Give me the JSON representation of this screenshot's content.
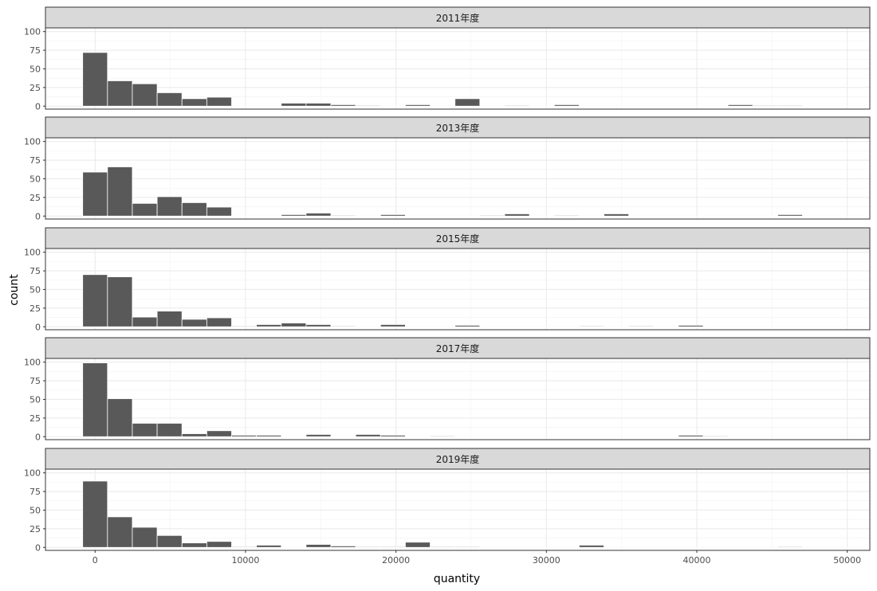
{
  "chart_data": {
    "type": "bar",
    "subtype": "faceted-histogram",
    "xlabel": "quantity",
    "ylabel": "count",
    "xlim": [
      -3300,
      51500
    ],
    "ylim": [
      -4,
      105
    ],
    "x_ticks": [
      0,
      10000,
      20000,
      30000,
      40000,
      50000
    ],
    "y_ticks": [
      0,
      25,
      50,
      75,
      100
    ],
    "bin_width": 1650,
    "bin_start": -825,
    "colors": {
      "bar_fill": "#595959",
      "bar_outline": "#ffffff",
      "strip_fill": "#d9d9d9",
      "panel_border": "#333333",
      "grid": "#ebebeb"
    },
    "panels": [
      {
        "label": "2011年度",
        "counts": [
          72,
          34,
          30,
          18,
          10,
          12,
          0,
          0,
          4,
          4,
          2,
          1,
          0,
          2,
          0,
          10,
          0,
          1,
          0,
          2,
          0,
          0,
          0,
          0,
          0,
          0,
          2,
          1,
          1,
          0,
          0,
          0
        ]
      },
      {
        "label": "2013年度",
        "counts": [
          59,
          66,
          17,
          26,
          18,
          12,
          0,
          0,
          2,
          4,
          1,
          0,
          2,
          0,
          0,
          0,
          1,
          3,
          0,
          1,
          0,
          3,
          0,
          0,
          0,
          0,
          0,
          0,
          2,
          0,
          0,
          0
        ]
      },
      {
        "label": "2015年度",
        "counts": [
          70,
          67,
          13,
          21,
          10,
          12,
          1,
          3,
          5,
          3,
          1,
          0,
          3,
          0,
          0,
          2,
          0,
          0,
          0,
          0,
          1,
          0,
          1,
          0,
          2,
          0,
          0,
          0,
          0,
          0,
          0,
          0
        ]
      },
      {
        "label": "2017年度",
        "counts": [
          99,
          51,
          18,
          18,
          4,
          8,
          2,
          2,
          0,
          3,
          0,
          3,
          2,
          0,
          1,
          0,
          0,
          0,
          0,
          0,
          0,
          0,
          0,
          0,
          2,
          1,
          0,
          0,
          0,
          0,
          0,
          0
        ]
      },
      {
        "label": "2019年度",
        "counts": [
          89,
          41,
          27,
          16,
          6,
          8,
          1,
          3,
          0,
          4,
          2,
          1,
          1,
          7,
          1,
          1,
          0,
          0,
          0,
          0,
          3,
          0,
          0,
          0,
          0,
          0,
          0,
          0,
          1,
          0,
          0,
          0
        ]
      }
    ]
  }
}
